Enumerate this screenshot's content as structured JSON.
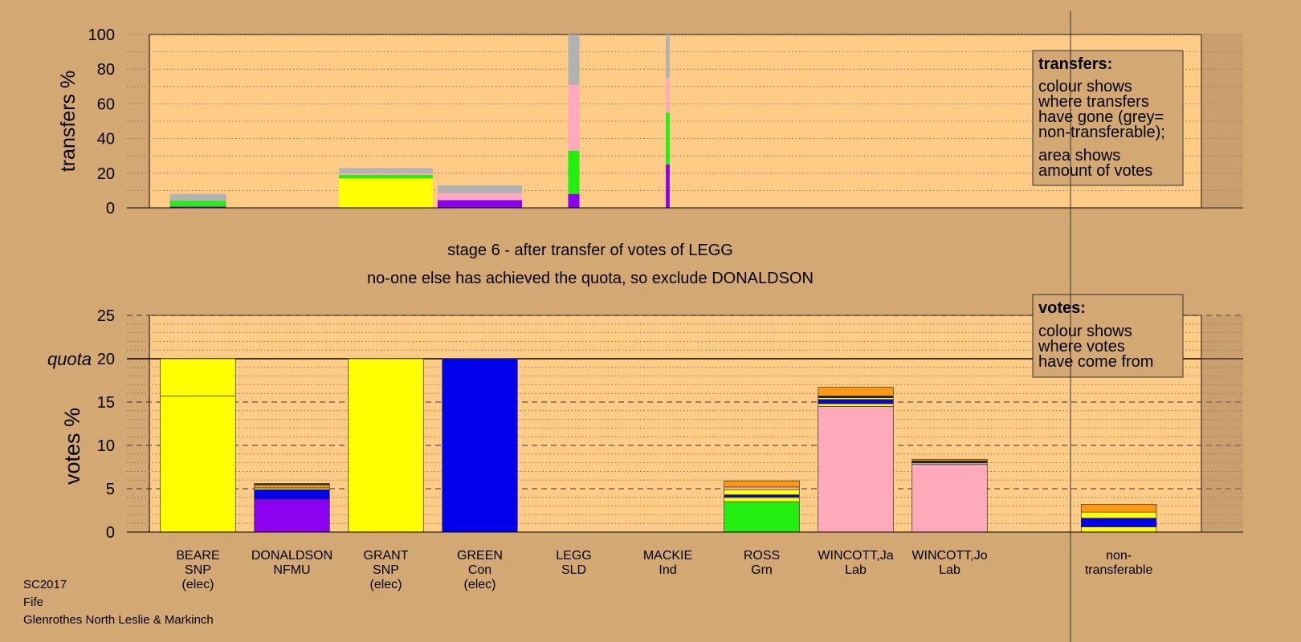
{
  "chart_data": [
    {
      "type": "bar",
      "ylabel": "transfers %",
      "ylim": [
        0,
        100
      ],
      "yticks": [
        0,
        20,
        40,
        60,
        80,
        100
      ],
      "bars": [
        {
          "x": 0.5,
          "width": 0.6,
          "segments": [
            {
              "color": "#8b00ee",
              "value": 0.8
            },
            {
              "color": "#22ee11",
              "value": 3.2
            },
            {
              "color": "#b2b2b2",
              "value": 4
            }
          ]
        },
        {
          "x": 2.5,
          "width": 1.0,
          "segments": [
            {
              "color": "#ffff00",
              "value": 17
            },
            {
              "color": "#22ee11",
              "value": 2
            },
            {
              "color": "#ffaabb",
              "value": 1
            },
            {
              "color": "#b2b2b2",
              "value": 3
            }
          ]
        },
        {
          "x": 3.5,
          "width": 0.9,
          "segments": [
            {
              "color": "#8b00ee",
              "value": 4.5
            },
            {
              "color": "#ffaabb",
              "value": 4
            },
            {
              "color": "#b2b2b2",
              "value": 4.5
            }
          ]
        },
        {
          "x": 4.5,
          "width": 0.12,
          "segments": [
            {
              "color": "#8b00ee",
              "value": 8
            },
            {
              "color": "#22ee11",
              "value": 25
            },
            {
              "color": "#ffaabb",
              "value": 38
            },
            {
              "color": "#b2b2b2",
              "value": 29
            }
          ]
        },
        {
          "x": 5.5,
          "width": 0.04,
          "segments": [
            {
              "color": "#8b00ee",
              "value": 25
            },
            {
              "color": "#22ee11",
              "value": 30
            },
            {
              "color": "#ffaabb",
              "value": 20
            },
            {
              "color": "#b2b2b2",
              "value": 25
            }
          ]
        }
      ],
      "legend": {
        "title": "transfers:",
        "lines": [
          "colour shows",
          "where transfers",
          "have gone (grey=",
          "non-transferable);",
          "area shows",
          "amount of votes"
        ]
      }
    },
    {
      "type": "bar",
      "ylabel": "votes %",
      "ylim": [
        0,
        25
      ],
      "yticks": [
        0,
        5,
        10,
        15,
        20,
        25
      ],
      "quota": 20,
      "quota_label": "quota",
      "candidates": [
        {
          "name": "BEARE",
          "party": "SNP",
          "status": "(elec)",
          "x": 0.5,
          "segments": [
            {
              "color": "#ffff00",
              "value": 15.7
            },
            {
              "color": "#ffff00",
              "value": 4.3
            }
          ]
        },
        {
          "name": "DONALDSON",
          "party": "NFMU",
          "status": "",
          "x": 1.5,
          "segments": [
            {
              "color": "#8b00ee",
              "value": 3.8
            },
            {
              "color": "#0000ee",
              "value": 1.1
            },
            {
              "color": "#ffff00",
              "value": 0.2
            },
            {
              "color": "#ff9911",
              "value": 0.3
            },
            {
              "color": "#ffaabb",
              "value": 0.1
            },
            {
              "color": "#111111",
              "value": 0.1
            }
          ]
        },
        {
          "name": "GRANT",
          "party": "SNP",
          "status": "(elec)",
          "x": 2.5,
          "segments": [
            {
              "color": "#ffff00",
              "value": 20
            }
          ]
        },
        {
          "name": "GREEN",
          "party": "Con",
          "status": "(elec)",
          "x": 3.5,
          "segments": [
            {
              "color": "#0000ee",
              "value": 20
            }
          ]
        },
        {
          "name": "LEGG",
          "party": "SLD",
          "status": "",
          "x": 4.5,
          "segments": []
        },
        {
          "name": "MACKIE",
          "party": "Ind",
          "status": "",
          "x": 5.5,
          "segments": []
        },
        {
          "name": "ROSS",
          "party": "Grn",
          "status": "",
          "x": 6.5,
          "segments": [
            {
              "color": "#22ee11",
              "value": 3.5
            },
            {
              "color": "#ffff00",
              "value": 0.5
            },
            {
              "color": "#0000ee",
              "value": 0.3
            },
            {
              "color": "#ffff00",
              "value": 0.6
            },
            {
              "color": "#ffaabb",
              "value": 0.3
            },
            {
              "color": "#ff9911",
              "value": 0.7
            }
          ]
        },
        {
          "name": "WINCOTT,Ja",
          "party": "Lab",
          "status": "",
          "x": 7.5,
          "segments": [
            {
              "color": "#ffaabb",
              "value": 14.5
            },
            {
              "color": "#ffff00",
              "value": 0.3
            },
            {
              "color": "#0000ee",
              "value": 0.5
            },
            {
              "color": "#ffff00",
              "value": 0.2
            },
            {
              "color": "#111111",
              "value": 0.2
            },
            {
              "color": "#ff9911",
              "value": 1
            }
          ]
        },
        {
          "name": "WINCOTT,Jo",
          "party": "Lab",
          "status": "",
          "x": 8.5,
          "segments": [
            {
              "color": "#ffaabb",
              "value": 7.8
            },
            {
              "color": "#aaaaaa",
              "value": 0.2
            },
            {
              "color": "#111111",
              "value": 0.2
            },
            {
              "color": "#ff9911",
              "value": 0.2
            }
          ]
        },
        {
          "name": "non-",
          "party": "transferable",
          "status": "",
          "x": 10.3,
          "segments": [
            {
              "color": "#ffff00",
              "value": 0.6
            },
            {
              "color": "#0000ee",
              "value": 1
            },
            {
              "color": "#ffff00",
              "value": 0.7
            },
            {
              "color": "#ff9911",
              "value": 0.9
            }
          ]
        }
      ],
      "legend": {
        "title": "votes:",
        "lines": [
          "colour shows",
          "where votes",
          "have come from"
        ]
      }
    }
  ],
  "stage_title": "stage 6 - after transfer of votes of LEGG",
  "stage_subtitle": "no-one else has achieved the quota, so exclude DONALDSON",
  "footer": {
    "line1": "SC2017",
    "line2": "Fife",
    "line3": "Glenrothes North Leslie & Markinch"
  },
  "colors": {
    "page_bg": "#d4a873",
    "plot_bg": "#ffcc88"
  }
}
